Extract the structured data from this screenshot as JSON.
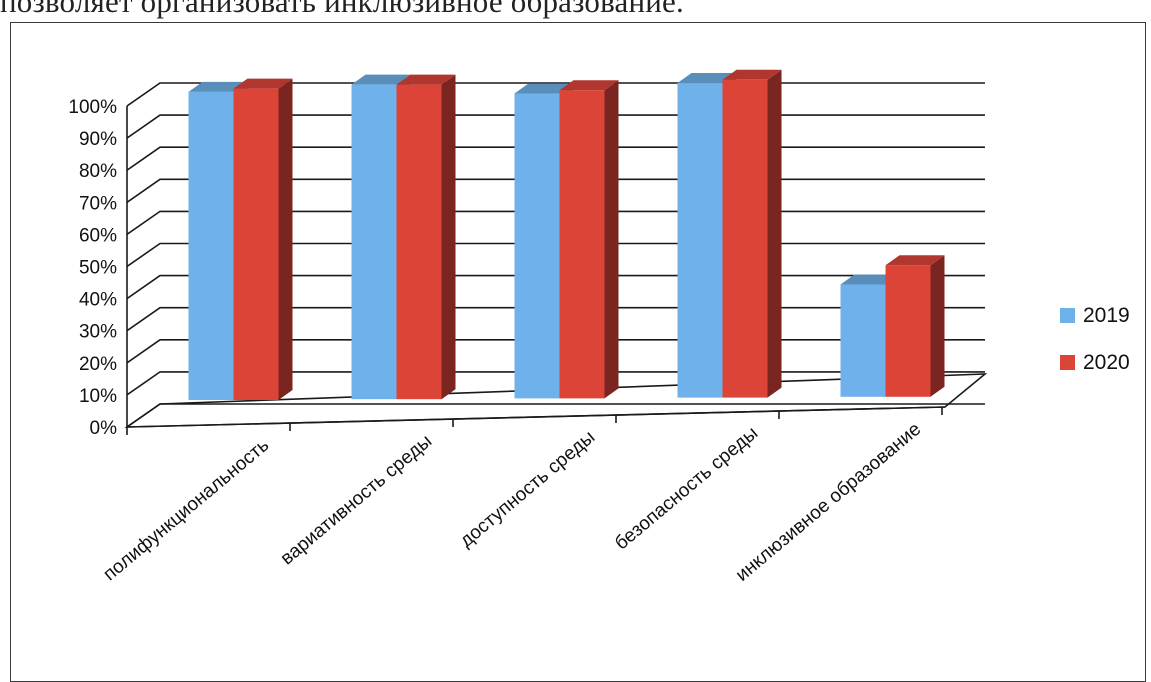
{
  "document": {
    "caption_fragment": "позволяет организовать инклюзивное образование."
  },
  "colors": {
    "series_2019": "#6fb1ea",
    "series_2020": "#dd4438"
  },
  "chart_data": {
    "type": "bar",
    "title": "",
    "xlabel": "",
    "ylabel": "",
    "ylim": [
      0,
      100
    ],
    "grid": true,
    "legend_position": "right",
    "y_ticks": [
      "0%",
      "10%",
      "20%",
      "30%",
      "40%",
      "50%",
      "60%",
      "70%",
      "80%",
      "90%",
      "100%"
    ],
    "categories": [
      "полифункциональность",
      "вариативность среды",
      "доступность среды",
      "безопасность среды",
      "инклюзивное образование"
    ],
    "series": [
      {
        "name": "2019",
        "values": [
          96,
          98,
          95,
          98,
          35
        ]
      },
      {
        "name": "2020",
        "values": [
          97,
          98,
          96,
          99,
          41
        ]
      }
    ]
  }
}
